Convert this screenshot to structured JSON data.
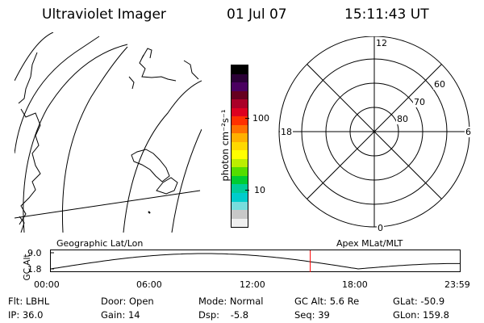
{
  "header": {
    "title": "Ultraviolet Imager",
    "date": "01 Jul 07",
    "time": "15:11:43 UT"
  },
  "colorbar": {
    "unit_label": "photon cm⁻²s⁻¹",
    "tick_labels": [
      "100",
      "10"
    ],
    "colors": [
      "#000000",
      "#2a0036",
      "#4a0060",
      "#660020",
      "#aa0028",
      "#dd0020",
      "#ff3000",
      "#ff7000",
      "#ffb000",
      "#ffd800",
      "#ffff00",
      "#bbee00",
      "#55dd00",
      "#00cc33",
      "#00cc99",
      "#00cccc",
      "#77dddd",
      "#c8c8c8",
      "#f0f0f0"
    ]
  },
  "polar_plot": {
    "mlt_labels": [
      "12",
      "18",
      "6",
      "0"
    ],
    "lat_labels": [
      "60",
      "70",
      "80"
    ]
  },
  "timeline": {
    "axis_label": "GC Alt",
    "left_caption": "Geographic Lat/Lon",
    "right_caption": "Apex MLat/MLT",
    "y_max": "9.0",
    "y_min": "1.8",
    "time_ticks": [
      "00:00",
      "06:00",
      "12:00",
      "18:00",
      "23:59"
    ],
    "marker_time": "15:11:43",
    "marker_color": "#ff0000"
  },
  "status": {
    "row1": [
      {
        "label": "Flt:",
        "value": "LBHL"
      },
      {
        "label": "Door:",
        "value": "Open"
      },
      {
        "label": "Mode:",
        "value": "Normal"
      },
      {
        "label": "GC Alt:",
        "value": "5.6 Re"
      },
      {
        "label": "GLat:",
        "value": "-50.9"
      }
    ],
    "row2": [
      {
        "label": "IP:",
        "value": "36.0"
      },
      {
        "label": "Gain:",
        "value": "14"
      },
      {
        "label": "Dsp:",
        "value": "-5.8"
      },
      {
        "label": "Seq:",
        "value": "39"
      },
      {
        "label": "GLon:",
        "value": "159.8"
      }
    ]
  }
}
